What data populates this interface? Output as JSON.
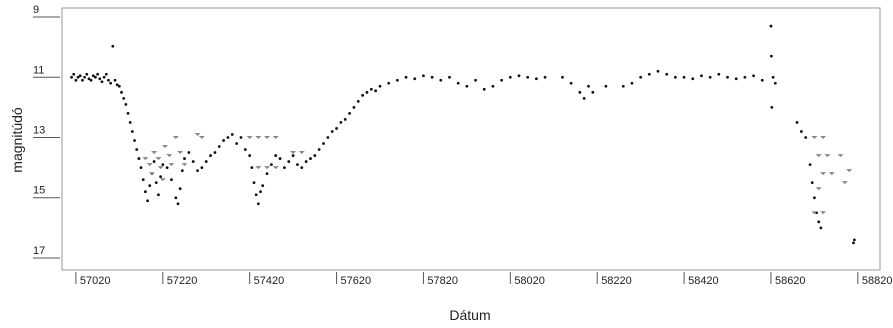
{
  "chart_data": {
    "type": "scatter",
    "xlabel": "Dátum",
    "ylabel": "magnitúdó",
    "xlim": [
      56988,
      58871
    ],
    "ylim": [
      17.4,
      8.7
    ],
    "y_inverted": true,
    "xticks": [
      57020,
      57220,
      57420,
      57620,
      57820,
      58020,
      58220,
      58420,
      58620,
      58820
    ],
    "yticks": [
      9,
      11,
      13,
      15,
      17
    ],
    "grid": false,
    "series": [
      {
        "color": "#111111",
        "marker": "dot",
        "x": [
          57010,
          57015,
          57020,
          57025,
          57030,
          57035,
          57040,
          57045,
          57050,
          57055,
          57060,
          57065,
          57070,
          57075,
          57080,
          57085,
          57090,
          57095,
          57100,
          57105,
          57110,
          57115,
          57120,
          57125,
          57130,
          57135,
          57140,
          57145,
          57150,
          57155,
          57160,
          57165,
          57170,
          57175,
          57180,
          57185,
          57190,
          57195,
          57200,
          57205,
          57210,
          57215,
          57220,
          57230,
          57240,
          57250,
          57255,
          57260,
          57265,
          57270,
          57280,
          57290,
          57300,
          57310,
          57320,
          57330,
          57340,
          57350,
          57360,
          57370,
          57380,
          57390,
          57400,
          57410,
          57420,
          57425,
          57430,
          57435,
          57440,
          57445,
          57450,
          57460,
          57470,
          57480,
          57490,
          57500,
          57510,
          57520,
          57530,
          57540,
          57550,
          57560,
          57570,
          57580,
          57590,
          57600,
          57610,
          57620,
          57630,
          57640,
          57650,
          57660,
          57670,
          57680,
          57690,
          57700,
          57710,
          57720,
          57740,
          57760,
          57780,
          57800,
          57820,
          57840,
          57860,
          57880,
          57900,
          57920,
          57940,
          57960,
          57980,
          58000,
          58020,
          58040,
          58060,
          58080,
          58100,
          58140,
          58160,
          58180,
          58190,
          58200,
          58210,
          58240,
          58280,
          58300,
          58320,
          58340,
          58360,
          58380,
          58400,
          58420,
          58440,
          58460,
          58480,
          58500,
          58520,
          58540,
          58560,
          58580,
          58600,
          58620,
          58621,
          58625,
          58622,
          58630,
          58680,
          58690,
          58700,
          58710,
          58715,
          58720,
          58725,
          58730,
          58735,
          58810,
          58812
        ],
        "values": [
          11.0,
          10.9,
          11.1,
          11.0,
          10.95,
          11.1,
          11.0,
          10.9,
          11.05,
          11.1,
          10.95,
          11.0,
          10.9,
          11.05,
          11.15,
          11.0,
          10.9,
          11.1,
          11.2,
          9.97,
          11.1,
          11.25,
          11.3,
          11.5,
          11.7,
          11.9,
          12.2,
          12.5,
          12.8,
          13.1,
          13.4,
          13.7,
          14.0,
          14.4,
          14.8,
          15.1,
          14.6,
          14.2,
          13.8,
          14.5,
          14.9,
          14.3,
          13.9,
          14.0,
          14.4,
          15.0,
          15.2,
          14.7,
          14.1,
          13.7,
          13.5,
          13.8,
          14.1,
          14.0,
          13.8,
          13.6,
          13.5,
          13.3,
          13.1,
          13.0,
          12.9,
          13.2,
          13.0,
          13.4,
          13.6,
          14.0,
          14.5,
          14.9,
          15.2,
          14.8,
          14.6,
          14.2,
          13.9,
          13.6,
          13.7,
          14.0,
          13.8,
          13.6,
          13.9,
          14.0,
          13.8,
          13.7,
          13.6,
          13.4,
          13.2,
          13.0,
          12.8,
          12.7,
          12.5,
          12.4,
          12.2,
          12.0,
          11.8,
          11.6,
          11.5,
          11.4,
          11.45,
          11.3,
          11.2,
          11.1,
          11.0,
          11.05,
          10.95,
          11.0,
          11.1,
          11.0,
          11.2,
          11.3,
          11.1,
          11.4,
          11.3,
          11.1,
          11.0,
          10.95,
          11.0,
          11.05,
          11.0,
          11.0,
          11.2,
          11.5,
          11.7,
          11.3,
          11.5,
          11.3,
          11.3,
          11.2,
          11.0,
          10.9,
          10.8,
          10.9,
          11.0,
          11.0,
          11.05,
          10.95,
          11.0,
          10.9,
          11.0,
          11.05,
          11.0,
          10.95,
          11.1,
          9.3,
          10.3,
          11.0,
          12.0,
          11.2,
          12.5,
          12.8,
          13.0,
          13.9,
          14.5,
          15.0,
          15.5,
          15.8,
          16.0,
          16.5,
          16.4
        ]
      },
      {
        "color": "#888888",
        "marker": "v",
        "x": [
          57180,
          57190,
          57195,
          57200,
          57210,
          57215,
          57220,
          57225,
          57235,
          57240,
          57250,
          57260,
          57270,
          57300,
          57310,
          57420,
          57440,
          57460,
          57480,
          57440,
          57460,
          57480,
          57520,
          57540,
          58720,
          58740,
          58730,
          58750,
          58740,
          58760,
          58780,
          58790,
          58730,
          58800,
          58720,
          58740
        ],
        "values": [
          13.7,
          13.9,
          14.2,
          13.5,
          13.7,
          14.0,
          14.4,
          13.3,
          13.6,
          13.9,
          13.0,
          13.5,
          13.9,
          12.9,
          13.0,
          13.0,
          13.0,
          13.0,
          13.0,
          14.0,
          14.0,
          14.0,
          13.5,
          13.5,
          13.0,
          13.0,
          13.6,
          13.6,
          14.2,
          14.2,
          13.6,
          14.5,
          14.7,
          14.1,
          15.5,
          15.5
        ]
      }
    ]
  }
}
